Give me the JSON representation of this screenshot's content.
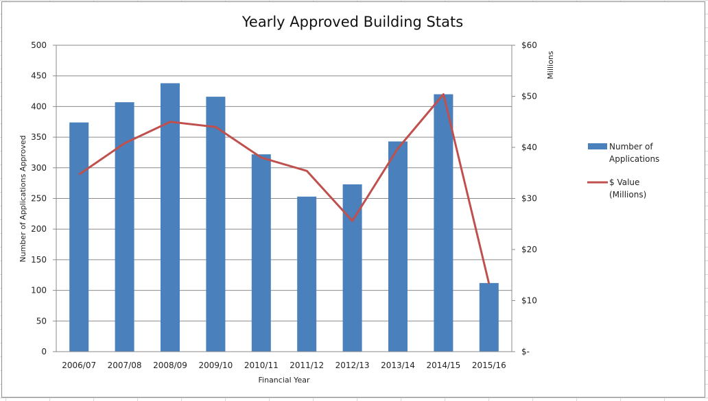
{
  "chart_data": {
    "type": "bar",
    "title": "Yearly Approved Building Stats",
    "xlabel": "Financial Year",
    "ylabel": "Number of Applications Approved",
    "y2label": "Millions",
    "categories": [
      "2006/07",
      "2007/08",
      "2008/09",
      "2009/10",
      "2010/11",
      "2011/12",
      "2012/13",
      "2013/14",
      "2014/15",
      "2015/16"
    ],
    "ylim": [
      0,
      500
    ],
    "yticks": [
      "0",
      "50",
      "100",
      "150",
      "200",
      "250",
      "300",
      "350",
      "400",
      "450",
      "500"
    ],
    "y2lim": [
      0,
      60
    ],
    "y2ticks": [
      "$-",
      "$10",
      "$20",
      "$30",
      "$40",
      "$50",
      "$60"
    ],
    "series": [
      {
        "name": "Number of Applications",
        "type": "bar",
        "axis": "left",
        "color": "#4a81bd",
        "values": [
          374,
          407,
          438,
          416,
          322,
          253,
          273,
          343,
          420,
          112
        ]
      },
      {
        "name": "$ Value (Millions)",
        "type": "line",
        "axis": "right",
        "color": "#c0504d",
        "values": [
          34.7,
          40.8,
          45.0,
          44.0,
          38.0,
          35.4,
          25.6,
          39.8,
          50.4,
          13.3
        ]
      }
    ],
    "legend": [
      {
        "label_lines": [
          "Number of",
          "Applications"
        ],
        "kind": "bar",
        "color": "#4a81bd"
      },
      {
        "label_lines": [
          "$ Value",
          "(Millions)"
        ],
        "kind": "line",
        "color": "#c0504d"
      }
    ],
    "legend_position": "right",
    "grid": true
  }
}
